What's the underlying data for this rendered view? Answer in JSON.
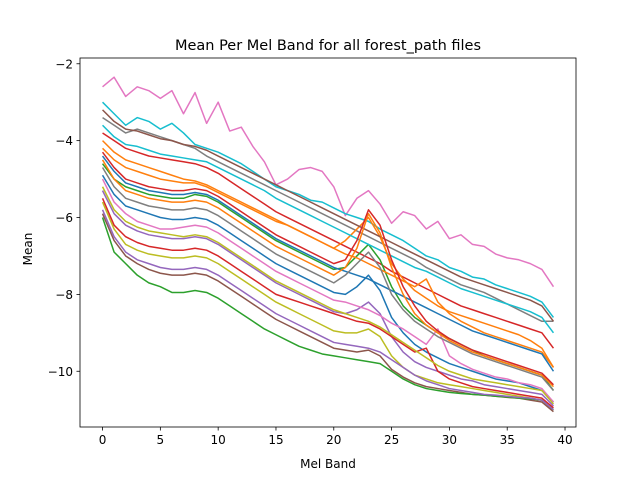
{
  "chart_data": {
    "type": "line",
    "title": "Mean Per Mel Band for all forest_path files",
    "xlabel": "Mel Band",
    "ylabel": "Mean",
    "xlim": [
      -1.95,
      40.95
    ],
    "ylim": [
      -11.45,
      -1.85
    ],
    "xticks": [
      0,
      5,
      10,
      15,
      20,
      25,
      30,
      35,
      40
    ],
    "yticks": [
      -2,
      -4,
      -6,
      -8,
      -10
    ],
    "ytick_labels": [
      "−2",
      "−4",
      "−6",
      "−8",
      "−10"
    ],
    "grid": false,
    "legend": "none",
    "colors": [
      "#1f77b4",
      "#ff7f0e",
      "#2ca02c",
      "#d62728",
      "#9467bd",
      "#8c564b",
      "#e377c2",
      "#7f7f7f",
      "#bcbd22",
      "#17becf"
    ],
    "x": [
      0,
      1,
      2,
      3,
      4,
      5,
      6,
      7,
      8,
      9,
      10,
      11,
      12,
      13,
      14,
      15,
      16,
      17,
      18,
      19,
      20,
      21,
      22,
      23,
      24,
      25,
      26,
      27,
      28,
      29,
      30,
      31,
      32,
      33,
      34,
      35,
      36,
      37,
      38,
      39
    ],
    "series": [
      {
        "values": [
          -2.6,
          -2.35,
          -2.85,
          -2.6,
          -2.7,
          -2.9,
          -2.7,
          -3.3,
          -2.75,
          -3.55,
          -3.0,
          -3.75,
          -3.65,
          -4.15,
          -4.55,
          -5.15,
          -5.0,
          -4.75,
          -4.7,
          -4.8,
          -5.2,
          -5.95,
          -5.5,
          -5.3,
          -5.65,
          -6.15,
          -5.85,
          -5.95,
          -6.3,
          -6.1,
          -6.55,
          -6.45,
          -6.7,
          -6.75,
          -6.95,
          -7.05,
          -7.1,
          -7.2,
          -7.35,
          -7.8
        ],
        "color": "#e377c2"
      },
      {
        "values": [
          -3.0,
          -3.3,
          -3.6,
          -3.4,
          -3.5,
          -3.7,
          -3.55,
          -3.8,
          -4.1,
          -4.2,
          -4.3,
          -4.45,
          -4.6,
          -4.8,
          -5.0,
          -5.2,
          -5.3,
          -5.4,
          -5.55,
          -5.6,
          -5.75,
          -5.9,
          -6.0,
          -6.1,
          -6.3,
          -6.45,
          -6.6,
          -6.8,
          -7.0,
          -7.1,
          -7.3,
          -7.4,
          -7.55,
          -7.6,
          -7.75,
          -7.85,
          -7.95,
          -8.05,
          -8.2,
          -8.6
        ],
        "color": "#17becf"
      },
      {
        "values": [
          -3.4,
          -3.6,
          -3.8,
          -3.7,
          -3.8,
          -3.9,
          -4.0,
          -4.1,
          -4.2,
          -4.4,
          -4.55,
          -4.7,
          -4.85,
          -5.0,
          -5.15,
          -5.3,
          -5.45,
          -5.6,
          -5.75,
          -5.9,
          -6.05,
          -6.2,
          -6.35,
          -6.5,
          -6.65,
          -6.8,
          -6.95,
          -7.1,
          -7.3,
          -7.45,
          -7.6,
          -7.75,
          -7.85,
          -7.95,
          -8.1,
          -8.25,
          -8.4,
          -8.55,
          -8.7,
          -8.7
        ],
        "color": "#7f7f7f"
      },
      {
        "values": [
          -3.8,
          -4.0,
          -4.2,
          -4.3,
          -4.4,
          -4.45,
          -4.5,
          -4.55,
          -4.6,
          -4.7,
          -4.85,
          -5.05,
          -5.25,
          -5.45,
          -5.65,
          -5.85,
          -6.0,
          -6.15,
          -6.3,
          -6.45,
          -6.6,
          -6.75,
          -6.9,
          -7.05,
          -7.2,
          -7.4,
          -7.55,
          -7.7,
          -7.85,
          -8.0,
          -8.15,
          -8.3,
          -8.4,
          -8.5,
          -8.6,
          -8.7,
          -8.8,
          -8.9,
          -9.0,
          -9.4
        ],
        "color": "#d62728"
      },
      {
        "values": [
          -4.2,
          -4.5,
          -4.7,
          -4.8,
          -4.9,
          -5.0,
          -5.05,
          -5.1,
          -5.1,
          -5.2,
          -5.35,
          -5.5,
          -5.65,
          -5.8,
          -5.95,
          -6.1,
          -6.2,
          -6.35,
          -6.5,
          -6.65,
          -6.8,
          -6.6,
          -6.3,
          -6.0,
          -6.5,
          -7.2,
          -7.6,
          -7.9,
          -8.1,
          -8.3,
          -8.45,
          -8.55,
          -8.65,
          -8.75,
          -8.85,
          -8.95,
          -9.05,
          -9.2,
          -9.4,
          -9.9
        ],
        "color": "#ff7f0e"
      },
      {
        "values": [
          -4.6,
          -5.0,
          -5.2,
          -5.3,
          -5.4,
          -5.45,
          -5.5,
          -5.5,
          -5.4,
          -5.45,
          -5.6,
          -5.8,
          -6.0,
          -6.2,
          -6.4,
          -6.6,
          -6.75,
          -6.9,
          -7.05,
          -7.2,
          -7.35,
          -7.3,
          -7.0,
          -6.7,
          -7.1,
          -7.8,
          -8.3,
          -8.6,
          -8.8,
          -9.0,
          -9.15,
          -9.3,
          -9.45,
          -9.6,
          -9.7,
          -9.8,
          -9.9,
          -10.0,
          -10.1,
          -10.5
        ],
        "color": "#2ca02c"
      },
      {
        "values": [
          -4.9,
          -5.4,
          -5.7,
          -5.8,
          -5.9,
          -6.0,
          -6.05,
          -6.05,
          -6.0,
          -6.05,
          -6.2,
          -6.4,
          -6.6,
          -6.8,
          -7.0,
          -7.2,
          -7.35,
          -7.5,
          -7.65,
          -7.8,
          -7.95,
          -8.0,
          -7.8,
          -7.5,
          -7.9,
          -8.6,
          -9.0,
          -9.3,
          -9.5,
          -9.65,
          -9.8,
          -9.9,
          -10.0,
          -10.1,
          -10.2,
          -10.25,
          -10.3,
          -10.4,
          -10.5,
          -10.8
        ],
        "color": "#1f77b4"
      },
      {
        "values": [
          -5.3,
          -5.9,
          -6.2,
          -6.35,
          -6.45,
          -6.5,
          -6.55,
          -6.55,
          -6.5,
          -6.55,
          -6.7,
          -6.9,
          -7.1,
          -7.3,
          -7.5,
          -7.7,
          -7.85,
          -8.0,
          -8.15,
          -8.3,
          -8.45,
          -8.5,
          -8.4,
          -8.2,
          -8.5,
          -9.1,
          -9.5,
          -9.75,
          -9.9,
          -10.0,
          -10.1,
          -10.2,
          -10.25,
          -10.35,
          -10.4,
          -10.45,
          -10.5,
          -10.55,
          -10.6,
          -10.9
        ],
        "color": "#9467bd"
      },
      {
        "values": [
          -5.6,
          -6.3,
          -6.7,
          -6.85,
          -6.95,
          -7.0,
          -7.05,
          -7.05,
          -7.0,
          -7.05,
          -7.2,
          -7.4,
          -7.6,
          -7.8,
          -8.0,
          -8.2,
          -8.35,
          -8.5,
          -8.65,
          -8.8,
          -8.95,
          -9.0,
          -9.0,
          -8.9,
          -9.1,
          -9.6,
          -9.9,
          -10.1,
          -10.2,
          -10.3,
          -10.35,
          -10.4,
          -10.45,
          -10.5,
          -10.55,
          -10.6,
          -10.65,
          -10.7,
          -10.75,
          -11.0
        ],
        "color": "#bcbd22"
      },
      {
        "values": [
          -5.9,
          -6.6,
          -7.0,
          -7.2,
          -7.35,
          -7.45,
          -7.5,
          -7.5,
          -7.45,
          -7.5,
          -7.65,
          -7.85,
          -8.05,
          -8.25,
          -8.45,
          -8.65,
          -8.8,
          -8.95,
          -9.1,
          -9.25,
          -9.4,
          -9.45,
          -9.5,
          -9.45,
          -9.6,
          -9.95,
          -10.15,
          -10.3,
          -10.4,
          -10.45,
          -10.5,
          -10.55,
          -10.6,
          -10.62,
          -10.65,
          -10.68,
          -10.7,
          -10.75,
          -10.8,
          -11.05
        ],
        "color": "#8c564b"
      },
      {
        "values": [
          -6.0,
          -6.9,
          -7.2,
          -7.5,
          -7.7,
          -7.8,
          -7.95,
          -7.95,
          -7.9,
          -7.95,
          -8.1,
          -8.3,
          -8.5,
          -8.7,
          -8.9,
          -9.05,
          -9.2,
          -9.35,
          -9.45,
          -9.55,
          -9.6,
          -9.65,
          -9.7,
          -9.75,
          -9.8,
          -10.0,
          -10.2,
          -10.35,
          -10.45,
          -10.5,
          -10.55,
          -10.58,
          -10.6,
          -10.62,
          -10.65,
          -10.67,
          -10.7,
          -10.72,
          -10.75,
          -11.0
        ],
        "color": "#2ca02c"
      },
      {
        "values": [
          -4.0,
          -4.3,
          -4.5,
          -4.6,
          -4.7,
          -4.8,
          -4.9,
          -5.0,
          -5.05,
          -5.15,
          -5.3,
          -5.45,
          -5.6,
          -5.75,
          -5.9,
          -6.05,
          -6.2,
          -6.35,
          -6.5,
          -6.65,
          -6.8,
          -6.95,
          -7.05,
          -7.2,
          -7.35,
          -7.5,
          -7.65,
          -7.8,
          -7.6,
          -8.2,
          -8.5,
          -8.7,
          -8.85,
          -9.0,
          -9.1,
          -9.2,
          -9.3,
          -9.4,
          -9.5,
          -9.9
        ],
        "color": "#ff7f0e"
      },
      {
        "values": [
          -5.0,
          -5.6,
          -5.9,
          -6.1,
          -6.2,
          -6.3,
          -6.3,
          -6.25,
          -6.2,
          -6.25,
          -6.4,
          -6.6,
          -6.8,
          -7.0,
          -7.2,
          -7.4,
          -7.55,
          -7.7,
          -7.85,
          -8.0,
          -8.15,
          -8.2,
          -8.3,
          -8.4,
          -8.55,
          -8.75,
          -8.9,
          -9.1,
          -9.3,
          -8.9,
          -9.6,
          -9.8,
          -9.95,
          -10.05,
          -10.15,
          -10.2,
          -10.3,
          -10.35,
          -10.45,
          -10.8
        ],
        "color": "#e377c2"
      },
      {
        "values": [
          -3.6,
          -3.9,
          -4.1,
          -4.15,
          -4.25,
          -4.35,
          -4.4,
          -4.45,
          -4.5,
          -4.55,
          -4.7,
          -4.85,
          -5.0,
          -5.15,
          -5.3,
          -5.5,
          -5.65,
          -5.8,
          -5.95,
          -6.1,
          -6.25,
          -6.4,
          -6.55,
          -6.7,
          -6.85,
          -7.0,
          -7.15,
          -7.3,
          -7.4,
          -7.55,
          -7.7,
          -7.85,
          -7.95,
          -8.05,
          -8.15,
          -8.25,
          -8.35,
          -8.45,
          -8.6,
          -9.0
        ],
        "color": "#17becf"
      },
      {
        "values": [
          -5.5,
          -6.2,
          -6.5,
          -6.65,
          -6.75,
          -6.8,
          -6.85,
          -6.85,
          -6.8,
          -6.85,
          -7.0,
          -7.2,
          -7.4,
          -7.6,
          -7.8,
          -8.0,
          -8.1,
          -8.2,
          -8.3,
          -8.4,
          -8.5,
          -8.6,
          -8.7,
          -8.75,
          -8.9,
          -9.1,
          -9.3,
          -9.5,
          -9.4,
          -10.0,
          -10.2,
          -10.3,
          -10.4,
          -10.45,
          -10.5,
          -10.55,
          -10.6,
          -10.65,
          -10.7,
          -10.95
        ],
        "color": "#d62728"
      },
      {
        "values": [
          -4.4,
          -4.8,
          -5.1,
          -5.2,
          -5.3,
          -5.35,
          -5.4,
          -5.4,
          -5.35,
          -5.4,
          -5.55,
          -5.75,
          -5.95,
          -6.15,
          -6.35,
          -6.55,
          -6.7,
          -6.85,
          -7.0,
          -7.15,
          -7.3,
          -7.4,
          -7.5,
          -7.6,
          -7.75,
          -7.9,
          -8.05,
          -8.2,
          -8.35,
          -8.5,
          -8.65,
          -8.8,
          -8.95,
          -9.05,
          -9.15,
          -9.25,
          -9.35,
          -9.45,
          -9.55,
          -10.0
        ],
        "color": "#1f77b4"
      },
      {
        "values": [
          -5.2,
          -5.8,
          -6.1,
          -6.25,
          -6.35,
          -6.4,
          -6.45,
          -6.5,
          -6.45,
          -6.5,
          -6.65,
          -6.85,
          -7.05,
          -7.25,
          -7.45,
          -7.65,
          -7.8,
          -7.95,
          -8.1,
          -8.25,
          -8.4,
          -8.5,
          -8.6,
          -8.7,
          -8.85,
          -9.05,
          -9.25,
          -9.45,
          -9.65,
          -9.85,
          -10.0,
          -10.1,
          -10.2,
          -10.25,
          -10.3,
          -10.35,
          -10.4,
          -10.45,
          -10.5,
          -10.85
        ],
        "color": "#bcbd22"
      },
      {
        "values": [
          -3.2,
          -3.5,
          -3.7,
          -3.75,
          -3.85,
          -3.95,
          -4.0,
          -4.1,
          -4.15,
          -4.25,
          -4.4,
          -4.55,
          -4.7,
          -4.85,
          -5.0,
          -5.15,
          -5.3,
          -5.45,
          -5.6,
          -5.75,
          -5.9,
          -6.05,
          -6.2,
          -6.35,
          -6.5,
          -6.65,
          -6.8,
          -6.95,
          -7.1,
          -7.25,
          -7.4,
          -7.55,
          -7.65,
          -7.75,
          -7.85,
          -7.95,
          -8.05,
          -8.15,
          -8.3,
          -8.7
        ],
        "color": "#8c564b"
      },
      {
        "values": [
          -5.8,
          -6.5,
          -6.9,
          -7.1,
          -7.2,
          -7.3,
          -7.35,
          -7.35,
          -7.3,
          -7.35,
          -7.5,
          -7.7,
          -7.9,
          -8.1,
          -8.3,
          -8.5,
          -8.65,
          -8.8,
          -8.95,
          -9.1,
          -9.25,
          -9.3,
          -9.35,
          -9.4,
          -9.5,
          -9.7,
          -9.9,
          -10.1,
          -10.25,
          -10.35,
          -10.45,
          -10.5,
          -10.55,
          -10.6,
          -10.62,
          -10.65,
          -10.68,
          -10.7,
          -10.75,
          -11.0
        ],
        "color": "#9467bd"
      },
      {
        "values": [
          -4.7,
          -5.2,
          -5.5,
          -5.6,
          -5.7,
          -5.75,
          -5.8,
          -5.8,
          -5.75,
          -5.8,
          -5.95,
          -6.15,
          -6.35,
          -6.55,
          -6.75,
          -6.95,
          -7.1,
          -7.25,
          -7.4,
          -7.55,
          -7.7,
          -7.5,
          -7.2,
          -6.9,
          -7.3,
          -8.0,
          -8.4,
          -8.7,
          -8.9,
          -9.1,
          -9.25,
          -9.4,
          -9.55,
          -9.65,
          -9.75,
          -9.85,
          -9.95,
          -10.05,
          -10.15,
          -10.5
        ],
        "color": "#7f7f7f"
      },
      {
        "values": [
          -4.5,
          -5.0,
          -5.3,
          -5.4,
          -5.5,
          -5.55,
          -5.6,
          -5.6,
          -5.55,
          -5.6,
          -5.75,
          -5.95,
          -6.15,
          -6.35,
          -6.55,
          -6.75,
          -6.9,
          -7.05,
          -7.2,
          -7.35,
          -7.5,
          -7.3,
          -6.8,
          -5.9,
          -6.4,
          -7.3,
          -8.0,
          -8.5,
          -8.8,
          -9.0,
          -9.2,
          -9.35,
          -9.5,
          -9.6,
          -9.7,
          -9.8,
          -9.9,
          -10.0,
          -10.1,
          -10.4
        ],
        "color": "#ff7f0e"
      },
      {
        "values": [
          -4.3,
          -4.7,
          -5.0,
          -5.1,
          -5.2,
          -5.25,
          -5.3,
          -5.3,
          -5.25,
          -5.3,
          -5.45,
          -5.65,
          -5.85,
          -6.05,
          -6.25,
          -6.45,
          -6.6,
          -6.75,
          -6.9,
          -7.05,
          -7.2,
          -7.1,
          -6.6,
          -5.8,
          -6.2,
          -7.1,
          -7.8,
          -8.3,
          -8.7,
          -8.95,
          -9.15,
          -9.3,
          -9.45,
          -9.55,
          -9.65,
          -9.75,
          -9.85,
          -9.95,
          -10.05,
          -10.35
        ],
        "color": "#d62728"
      }
    ]
  }
}
